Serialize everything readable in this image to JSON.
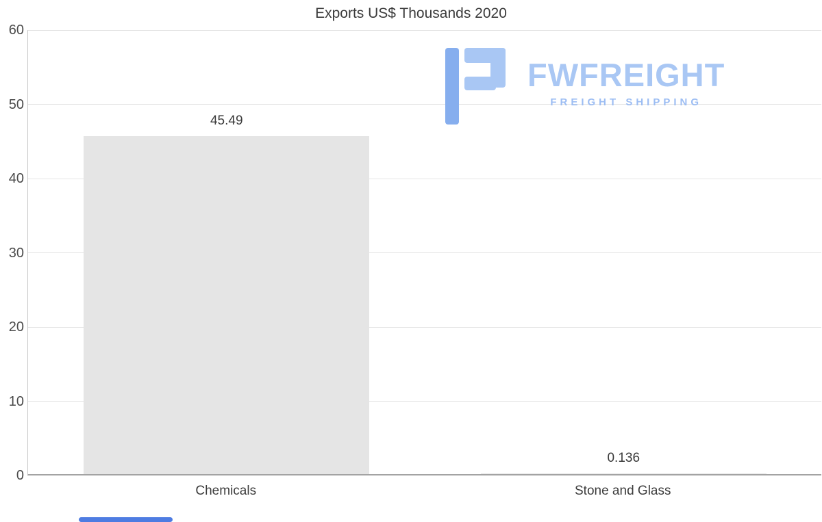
{
  "chart_data": {
    "type": "bar",
    "title": "Exports US$ Thousands 2020",
    "categories": [
      "Chemicals",
      "Stone and Glass"
    ],
    "values": [
      45.49,
      0.136
    ],
    "value_labels": [
      "45.49",
      "0.136"
    ],
    "ylim": [
      0,
      60
    ],
    "yticks": [
      0,
      10,
      20,
      30,
      40,
      50,
      60
    ],
    "grid": true,
    "legend_position": "none",
    "bar_color": "#e5e5e5",
    "gridline_color": "#e4e4e4",
    "axis_color": "#a3a3a3"
  },
  "logo": {
    "brand": "FWFREIGHT",
    "tagline": "FREIGHT SHIPPING",
    "brand_color": "#a9c7f4",
    "tagline_color": "#9cbdf3",
    "icon_dark": "#86aeee",
    "icon_light": "#a9c7f4"
  },
  "scrollbar": {
    "thumb_color": "#4e7ce2"
  }
}
